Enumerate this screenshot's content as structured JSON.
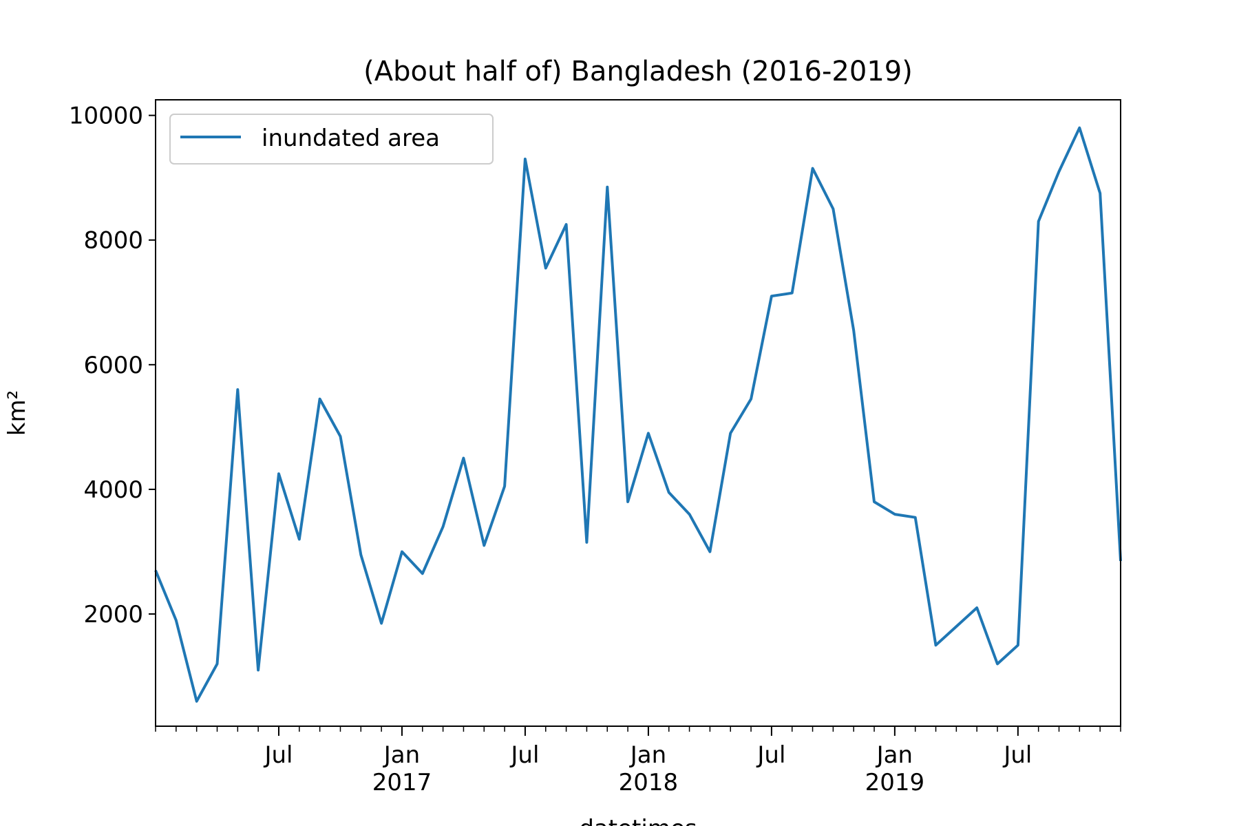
{
  "chart_data": {
    "type": "line",
    "title": "(About half of) Bangladesh (2016-2019)",
    "xlabel": "datetimes",
    "ylabel": "km²",
    "ylim": [
      200,
      10250
    ],
    "xlim": [
      "2016-01",
      "2019-12"
    ],
    "yticks": [
      2000,
      4000,
      6000,
      8000,
      10000
    ],
    "xticks": [
      {
        "month": "2016-07",
        "label": "Jul",
        "year": ""
      },
      {
        "month": "2017-01",
        "label": "Jan",
        "year": "2017"
      },
      {
        "month": "2017-07",
        "label": "Jul",
        "year": ""
      },
      {
        "month": "2018-01",
        "label": "Jan",
        "year": "2018"
      },
      {
        "month": "2018-07",
        "label": "Jul",
        "year": ""
      },
      {
        "month": "2019-01",
        "label": "Jan",
        "year": "2019"
      },
      {
        "month": "2019-07",
        "label": "Jul",
        "year": ""
      }
    ],
    "legend": {
      "position": "top-left"
    },
    "grid": false,
    "series": [
      {
        "name": "inundated area",
        "color": "#1f77b4",
        "x": [
          "2016-01",
          "2016-02",
          "2016-03",
          "2016-04",
          "2016-05",
          "2016-06",
          "2016-07",
          "2016-08",
          "2016-09",
          "2016-10",
          "2016-11",
          "2016-12",
          "2017-01",
          "2017-02",
          "2017-03",
          "2017-04",
          "2017-05",
          "2017-06",
          "2017-07",
          "2017-08",
          "2017-09",
          "2017-10",
          "2017-11",
          "2017-12",
          "2018-01",
          "2018-02",
          "2018-03",
          "2018-04",
          "2018-05",
          "2018-06",
          "2018-07",
          "2018-08",
          "2018-09",
          "2018-10",
          "2018-11",
          "2018-12",
          "2019-01",
          "2019-02",
          "2019-03",
          "2019-04",
          "2019-05",
          "2019-06",
          "2019-07",
          "2019-08",
          "2019-09",
          "2019-10",
          "2019-11",
          "2019-12"
        ],
        "values": [
          2700,
          1900,
          600,
          1200,
          5600,
          1100,
          4250,
          3200,
          5450,
          4850,
          2950,
          1850,
          3000,
          2650,
          3400,
          4500,
          3100,
          4050,
          9300,
          7550,
          8250,
          3150,
          8850,
          3800,
          4900,
          3950,
          3600,
          3000,
          4900,
          5450,
          7100,
          7150,
          9150,
          8500,
          6550,
          3800,
          3600,
          3550,
          1500,
          1800,
          2100,
          1200,
          1500,
          8300,
          9100,
          9800,
          8750,
          2850
        ]
      }
    ]
  }
}
